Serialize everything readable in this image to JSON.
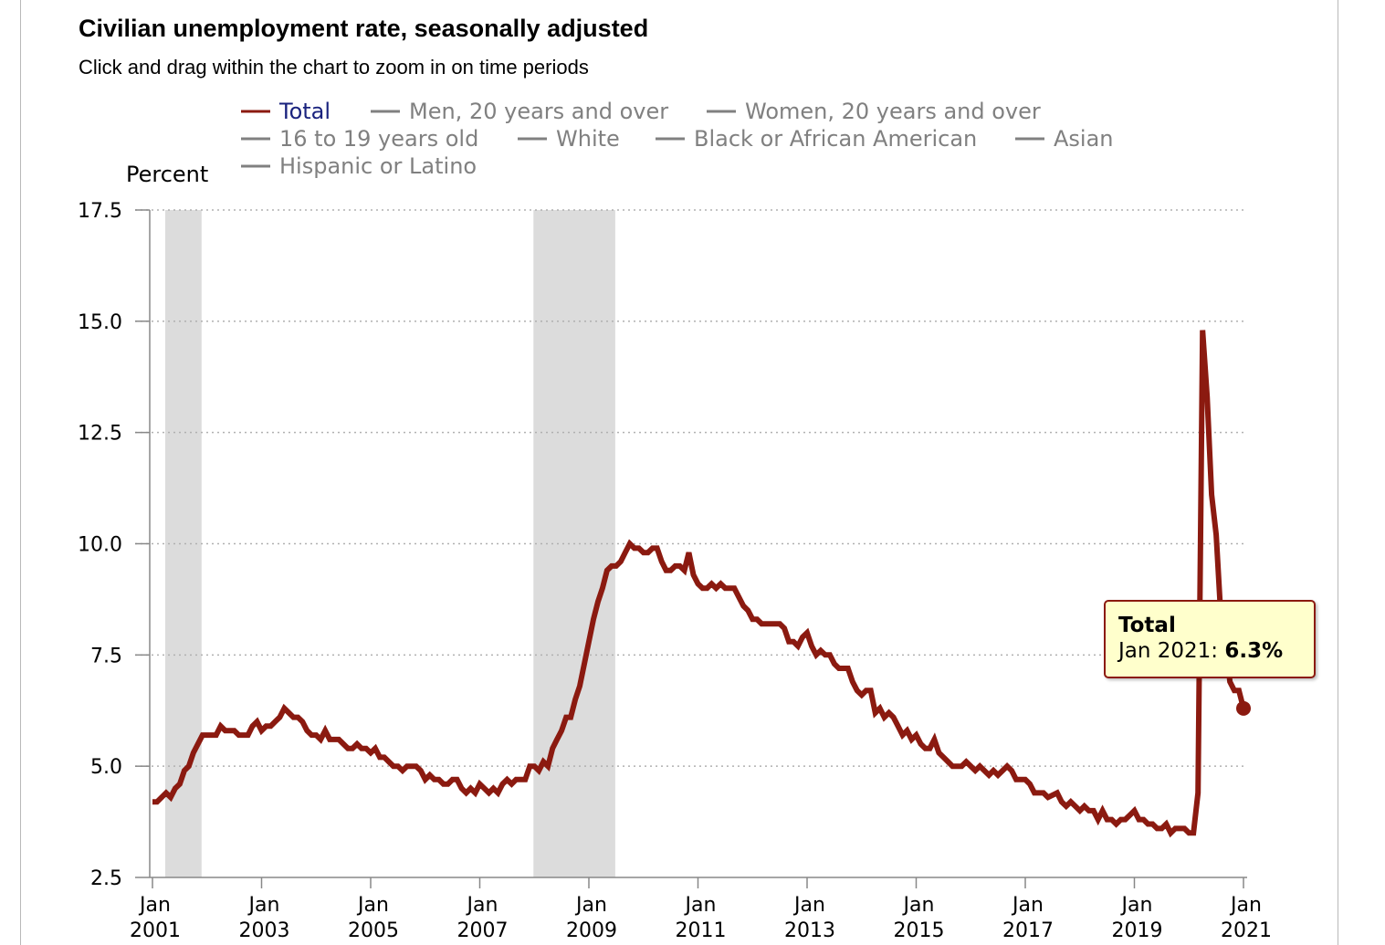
{
  "header": {
    "title": "Civilian unemployment rate, seasonally adjusted",
    "subtitle": "Click and drag within the chart to zoom in on time periods"
  },
  "colors": {
    "total_line": "#8b1a10",
    "inactive_legend": "#808080",
    "active_legend_text": "#1a237e",
    "recession_band": "#dcdcdc"
  },
  "tooltip": {
    "series": "Total",
    "date": "Jan 2021:",
    "value": "6.3%"
  },
  "chart_data": {
    "type": "line",
    "ylabel": "Percent",
    "ylim": [
      2.5,
      17.5
    ],
    "yticks": [
      "17.5",
      "15.0",
      "12.5",
      "10.0",
      "7.5",
      "5.0",
      "2.5"
    ],
    "ytick_values": [
      17.5,
      15.0,
      12.5,
      10.0,
      7.5,
      5.0,
      2.5
    ],
    "xlim": [
      "2001-01",
      "2021-01"
    ],
    "xticks": [
      {
        "month": "Jan",
        "year": "2001",
        "date": "2001-01"
      },
      {
        "month": "Jan",
        "year": "2003",
        "date": "2003-01"
      },
      {
        "month": "Jan",
        "year": "2005",
        "date": "2005-01"
      },
      {
        "month": "Jan",
        "year": "2007",
        "date": "2007-01"
      },
      {
        "month": "Jan",
        "year": "2009",
        "date": "2009-01"
      },
      {
        "month": "Jan",
        "year": "2011",
        "date": "2011-01"
      },
      {
        "month": "Jan",
        "year": "2013",
        "date": "2013-01"
      },
      {
        "month": "Jan",
        "year": "2015",
        "date": "2015-01"
      },
      {
        "month": "Jan",
        "year": "2017",
        "date": "2017-01"
      },
      {
        "month": "Jan",
        "year": "2019",
        "date": "2019-01"
      },
      {
        "month": "Jan",
        "year": "2021",
        "date": "2021-01"
      }
    ],
    "grid": true,
    "legend_placement": "top",
    "legend": [
      {
        "name": "Total",
        "active": true
      },
      {
        "name": "Men, 20 years and over",
        "active": false
      },
      {
        "name": "Women, 20 years and over",
        "active": false
      },
      {
        "name": "16 to 19 years old",
        "active": false
      },
      {
        "name": "White",
        "active": false
      },
      {
        "name": "Black or African American",
        "active": false
      },
      {
        "name": "Asian",
        "active": false
      },
      {
        "name": "Hispanic or Latino",
        "active": false
      }
    ],
    "recessions": [
      {
        "start": "2001-03",
        "end": "2001-11"
      },
      {
        "start": "2007-12",
        "end": "2009-06"
      }
    ],
    "series": [
      {
        "name": "Total",
        "points": [
          [
            "2001-01",
            4.2
          ],
          [
            "2001-02",
            4.2
          ],
          [
            "2001-04",
            4.4
          ],
          [
            "2001-05",
            4.3
          ],
          [
            "2001-06",
            4.5
          ],
          [
            "2001-07",
            4.6
          ],
          [
            "2001-08",
            4.9
          ],
          [
            "2001-09",
            5.0
          ],
          [
            "2001-10",
            5.3
          ],
          [
            "2001-12",
            5.7
          ],
          [
            "2002-03",
            5.7
          ],
          [
            "2002-04",
            5.9
          ],
          [
            "2002-05",
            5.8
          ],
          [
            "2002-07",
            5.8
          ],
          [
            "2002-08",
            5.7
          ],
          [
            "2002-10",
            5.7
          ],
          [
            "2002-11",
            5.9
          ],
          [
            "2002-12",
            6.0
          ],
          [
            "2003-01",
            5.8
          ],
          [
            "2003-02",
            5.9
          ],
          [
            "2003-03",
            5.9
          ],
          [
            "2003-04",
            6.0
          ],
          [
            "2003-05",
            6.1
          ],
          [
            "2003-06",
            6.3
          ],
          [
            "2003-07",
            6.2
          ],
          [
            "2003-08",
            6.1
          ],
          [
            "2003-09",
            6.1
          ],
          [
            "2003-10",
            6.0
          ],
          [
            "2003-11",
            5.8
          ],
          [
            "2003-12",
            5.7
          ],
          [
            "2004-01",
            5.7
          ],
          [
            "2004-02",
            5.6
          ],
          [
            "2004-03",
            5.8
          ],
          [
            "2004-04",
            5.6
          ],
          [
            "2004-06",
            5.6
          ],
          [
            "2004-07",
            5.5
          ],
          [
            "2004-08",
            5.4
          ],
          [
            "2004-09",
            5.4
          ],
          [
            "2004-10",
            5.5
          ],
          [
            "2004-11",
            5.4
          ],
          [
            "2004-12",
            5.4
          ],
          [
            "2005-01",
            5.3
          ],
          [
            "2005-02",
            5.4
          ],
          [
            "2005-03",
            5.2
          ],
          [
            "2005-04",
            5.2
          ],
          [
            "2005-05",
            5.1
          ],
          [
            "2005-06",
            5.0
          ],
          [
            "2005-07",
            5.0
          ],
          [
            "2005-08",
            4.9
          ],
          [
            "2005-09",
            5.0
          ],
          [
            "2005-11",
            5.0
          ],
          [
            "2005-12",
            4.9
          ],
          [
            "2006-01",
            4.7
          ],
          [
            "2006-02",
            4.8
          ],
          [
            "2006-03",
            4.7
          ],
          [
            "2006-04",
            4.7
          ],
          [
            "2006-05",
            4.6
          ],
          [
            "2006-06",
            4.6
          ],
          [
            "2006-07",
            4.7
          ],
          [
            "2006-08",
            4.7
          ],
          [
            "2006-09",
            4.5
          ],
          [
            "2006-10",
            4.4
          ],
          [
            "2006-11",
            4.5
          ],
          [
            "2006-12",
            4.4
          ],
          [
            "2007-01",
            4.6
          ],
          [
            "2007-02",
            4.5
          ],
          [
            "2007-03",
            4.4
          ],
          [
            "2007-04",
            4.5
          ],
          [
            "2007-05",
            4.4
          ],
          [
            "2007-06",
            4.6
          ],
          [
            "2007-07",
            4.7
          ],
          [
            "2007-08",
            4.6
          ],
          [
            "2007-09",
            4.7
          ],
          [
            "2007-11",
            4.7
          ],
          [
            "2007-12",
            5.0
          ],
          [
            "2008-01",
            5.0
          ],
          [
            "2008-02",
            4.9
          ],
          [
            "2008-03",
            5.1
          ],
          [
            "2008-04",
            5.0
          ],
          [
            "2008-05",
            5.4
          ],
          [
            "2008-06",
            5.6
          ],
          [
            "2008-07",
            5.8
          ],
          [
            "2008-08",
            6.1
          ],
          [
            "2008-09",
            6.1
          ],
          [
            "2008-10",
            6.5
          ],
          [
            "2008-11",
            6.8
          ],
          [
            "2008-12",
            7.3
          ],
          [
            "2009-01",
            7.8
          ],
          [
            "2009-02",
            8.3
          ],
          [
            "2009-03",
            8.7
          ],
          [
            "2009-04",
            9.0
          ],
          [
            "2009-05",
            9.4
          ],
          [
            "2009-06",
            9.5
          ],
          [
            "2009-07",
            9.5
          ],
          [
            "2009-08",
            9.6
          ],
          [
            "2009-09",
            9.8
          ],
          [
            "2009-10",
            10.0
          ],
          [
            "2009-11",
            9.9
          ],
          [
            "2009-12",
            9.9
          ],
          [
            "2010-01",
            9.8
          ],
          [
            "2010-02",
            9.8
          ],
          [
            "2010-03",
            9.9
          ],
          [
            "2010-04",
            9.9
          ],
          [
            "2010-05",
            9.6
          ],
          [
            "2010-06",
            9.4
          ],
          [
            "2010-07",
            9.4
          ],
          [
            "2010-08",
            9.5
          ],
          [
            "2010-09",
            9.5
          ],
          [
            "2010-10",
            9.4
          ],
          [
            "2010-11",
            9.8
          ],
          [
            "2010-12",
            9.3
          ],
          [
            "2011-01",
            9.1
          ],
          [
            "2011-02",
            9.0
          ],
          [
            "2011-03",
            9.0
          ],
          [
            "2011-04",
            9.1
          ],
          [
            "2011-05",
            9.0
          ],
          [
            "2011-06",
            9.1
          ],
          [
            "2011-07",
            9.0
          ],
          [
            "2011-09",
            9.0
          ],
          [
            "2011-10",
            8.8
          ],
          [
            "2011-11",
            8.6
          ],
          [
            "2011-12",
            8.5
          ],
          [
            "2012-01",
            8.3
          ],
          [
            "2012-02",
            8.3
          ],
          [
            "2012-03",
            8.2
          ],
          [
            "2012-07",
            8.2
          ],
          [
            "2012-08",
            8.1
          ],
          [
            "2012-09",
            7.8
          ],
          [
            "2012-10",
            7.8
          ],
          [
            "2012-11",
            7.7
          ],
          [
            "2012-12",
            7.9
          ],
          [
            "2013-01",
            8.0
          ],
          [
            "2013-02",
            7.7
          ],
          [
            "2013-03",
            7.5
          ],
          [
            "2013-04",
            7.6
          ],
          [
            "2013-05",
            7.5
          ],
          [
            "2013-06",
            7.5
          ],
          [
            "2013-07",
            7.3
          ],
          [
            "2013-08",
            7.2
          ],
          [
            "2013-10",
            7.2
          ],
          [
            "2013-11",
            6.9
          ],
          [
            "2013-12",
            6.7
          ],
          [
            "2014-01",
            6.6
          ],
          [
            "2014-02",
            6.7
          ],
          [
            "2014-03",
            6.7
          ],
          [
            "2014-04",
            6.2
          ],
          [
            "2014-05",
            6.3
          ],
          [
            "2014-06",
            6.1
          ],
          [
            "2014-07",
            6.2
          ],
          [
            "2014-08",
            6.1
          ],
          [
            "2014-09",
            5.9
          ],
          [
            "2014-10",
            5.7
          ],
          [
            "2014-11",
            5.8
          ],
          [
            "2014-12",
            5.6
          ],
          [
            "2015-01",
            5.7
          ],
          [
            "2015-02",
            5.5
          ],
          [
            "2015-03",
            5.4
          ],
          [
            "2015-04",
            5.4
          ],
          [
            "2015-05",
            5.6
          ],
          [
            "2015-06",
            5.3
          ],
          [
            "2015-07",
            5.2
          ],
          [
            "2015-08",
            5.1
          ],
          [
            "2015-09",
            5.0
          ],
          [
            "2015-11",
            5.0
          ],
          [
            "2015-12",
            5.1
          ],
          [
            "2016-01",
            5.0
          ],
          [
            "2016-02",
            4.9
          ],
          [
            "2016-03",
            5.0
          ],
          [
            "2016-05",
            4.8
          ],
          [
            "2016-06",
            4.9
          ],
          [
            "2016-07",
            4.8
          ],
          [
            "2016-09",
            5.0
          ],
          [
            "2016-10",
            4.9
          ],
          [
            "2016-11",
            4.7
          ],
          [
            "2017-01",
            4.7
          ],
          [
            "2017-02",
            4.6
          ],
          [
            "2017-03",
            4.4
          ],
          [
            "2017-04",
            4.4
          ],
          [
            "2017-05",
            4.4
          ],
          [
            "2017-06",
            4.3
          ],
          [
            "2017-08",
            4.4
          ],
          [
            "2017-09",
            4.2
          ],
          [
            "2017-10",
            4.1
          ],
          [
            "2017-11",
            4.2
          ],
          [
            "2017-12",
            4.1
          ],
          [
            "2018-01",
            4.0
          ],
          [
            "2018-02",
            4.1
          ],
          [
            "2018-03",
            4.0
          ],
          [
            "2018-04",
            4.0
          ],
          [
            "2018-05",
            3.8
          ],
          [
            "2018-06",
            4.0
          ],
          [
            "2018-07",
            3.8
          ],
          [
            "2018-08",
            3.8
          ],
          [
            "2018-09",
            3.7
          ],
          [
            "2018-10",
            3.8
          ],
          [
            "2018-11",
            3.8
          ],
          [
            "2018-12",
            3.9
          ],
          [
            "2019-01",
            4.0
          ],
          [
            "2019-02",
            3.8
          ],
          [
            "2019-03",
            3.8
          ],
          [
            "2019-04",
            3.7
          ],
          [
            "2019-05",
            3.7
          ],
          [
            "2019-06",
            3.6
          ],
          [
            "2019-07",
            3.6
          ],
          [
            "2019-08",
            3.7
          ],
          [
            "2019-09",
            3.5
          ],
          [
            "2019-10",
            3.6
          ],
          [
            "2019-12",
            3.6
          ],
          [
            "2020-01",
            3.5
          ],
          [
            "2020-02",
            3.5
          ],
          [
            "2020-03",
            4.4
          ],
          [
            "2020-04",
            14.8
          ],
          [
            "2020-05",
            13.3
          ],
          [
            "2020-06",
            11.1
          ],
          [
            "2020-07",
            10.2
          ],
          [
            "2020-08",
            8.4
          ],
          [
            "2020-09",
            7.9
          ],
          [
            "2020-10",
            6.9
          ],
          [
            "2020-11",
            6.7
          ],
          [
            "2020-12",
            6.7
          ],
          [
            "2021-01",
            6.3
          ]
        ]
      }
    ]
  }
}
